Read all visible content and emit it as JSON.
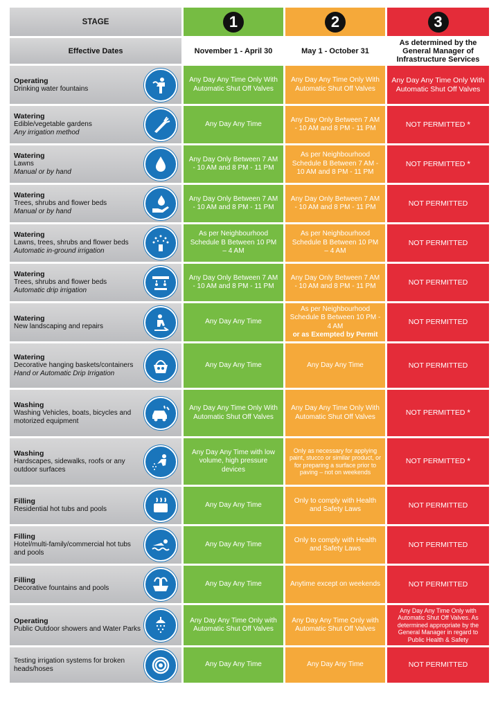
{
  "header": {
    "stage_label": "STAGE",
    "stage_numbers": [
      "1",
      "2",
      "3"
    ],
    "effective_dates_label": "Effective Dates",
    "dates": [
      "November 1 - April 30",
      "May 1 - October 31",
      "As determined by the General Manager of Infrastructure Services"
    ]
  },
  "colors": {
    "stage1": "#76bc43",
    "stage2": "#f5a93a",
    "stage3": "#e42c39",
    "icon": "#1a75bb",
    "label_bg": "#c8c9cb"
  },
  "rows": [
    {
      "category": "Operating",
      "desc": "Drinking water fountains",
      "mode": "",
      "icon": "drinking-fountain-icon",
      "s1": "Any Day Any Time Only With Automatic Shut Off Valves",
      "s2": "Any Day Any Time Only With Automatic Shut Off Valves",
      "s3": "Any Day Any Time Only With Automatic Shut Off Valves",
      "s3_star": ""
    },
    {
      "category": "Watering",
      "desc": "Edible/vegetable gardens",
      "mode": "Any irrigation method",
      "icon": "carrot-icon",
      "s1": "Any Day Any Time",
      "s2": "Any Day Only Between 7 AM - 10 AM and 8 PM - 11 PM",
      "s3": "NOT PERMITTED",
      "s3_star": "*"
    },
    {
      "category": "Watering",
      "desc": "Lawns",
      "mode": "Manual or by hand",
      "icon": "water-drop-icon",
      "s1": "Any Day Only Between 7 AM - 10 AM and 8 PM - 11 PM",
      "s2": "As per Neighbourhood Schedule B Between 7 AM - 10 AM and 8 PM - 11 PM",
      "s3": "NOT PERMITTED",
      "s3_star": "*"
    },
    {
      "category": "Watering",
      "desc": "Trees, shrubs and flower beds",
      "mode": "Manual or by hand",
      "icon": "hand-drop-icon",
      "s1": "Any Day Only Between 7 AM - 10 AM and 8 PM - 11 PM",
      "s2": "Any Day Only Between 7 AM - 10 AM and 8 PM - 11 PM",
      "s3": "NOT PERMITTED",
      "s3_star": ""
    },
    {
      "category": "Watering",
      "desc": "Lawns, trees, shrubs and flower beds",
      "mode": "Automatic in-ground irrigation",
      "icon": "sprinkler-icon",
      "s1": "As per Neighbourhood Schedule B Between 10 PM – 4 AM",
      "s2": "As per Neighbourhood Schedule B Between 10 PM – 4 AM",
      "s3": "NOT PERMITTED",
      "s3_star": ""
    },
    {
      "category": "Watering",
      "desc": "Trees, shrubs and flower beds",
      "mode": "Automatic drip irrigation",
      "icon": "drip-irrigation-icon",
      "s1": "Any Day Only Between 7 AM - 10 AM and 8 PM - 11 PM",
      "s2": "Any Day Only Between 7 AM - 10 AM and 8 PM - 11 PM",
      "s3": "NOT PERMITTED",
      "s3_star": ""
    },
    {
      "category": "Watering",
      "desc": "New landscaping and repairs",
      "mode": "",
      "icon": "gardener-icon",
      "s1": "Any Day Any Time",
      "s2": "As per Neighbourhood Schedule B Between 10 PM - 4 AM",
      "s2_bold": "or as Exempted by Permit",
      "s3": "NOT PERMITTED",
      "s3_star": ""
    },
    {
      "category": "Watering",
      "desc": "Decorative hanging baskets/containers",
      "mode": "Hand or Automatic Drip Irrigation",
      "icon": "flower-basket-icon",
      "s1": "Any Day Any Time",
      "s2": "Any Day Any Time",
      "s3": "NOT PERMITTED",
      "s3_star": ""
    },
    {
      "category": "Washing",
      "desc": "Washing Vehicles, boats, bicycles and motorized equipment",
      "mode": "",
      "icon": "car-wash-icon",
      "s1": "Any Day Any Time Only With Automatic Shut Off Valves",
      "s2": "Any Day Any Time Only With Automatic Shut Off Valves",
      "s3": "NOT PERMITTED",
      "s3_star": "*"
    },
    {
      "category": "Washing",
      "desc": "Hardscapes, sidewalks, roofs or any outdoor surfaces",
      "mode": "",
      "icon": "pressure-washer-icon",
      "s1": "Any Day Any Time with low volume, high pressure devices",
      "s2": "Only as necessary for applying paint, stucco or similar product, or for preparing a surface prior to paving – not on weekends",
      "s3": "NOT PERMITTED",
      "s3_star": "*"
    },
    {
      "category": "Filling",
      "desc": "Residential hot tubs and pools",
      "mode": "",
      "icon": "hot-tub-icon",
      "s1": "Any Day Any Time",
      "s2": "Only to comply with Health and Safety Laws",
      "s3": "NOT PERMITTED",
      "s3_star": ""
    },
    {
      "category": "Filling",
      "desc": "Hotel/multi-family/commercial hot tubs and pools",
      "mode": "",
      "icon": "swimmer-icon",
      "s1": "Any Day Any Time",
      "s2": "Only to comply with Health and Safety Laws",
      "s3": "NOT PERMITTED",
      "s3_star": ""
    },
    {
      "category": "Filling",
      "desc": "Decorative fountains and pools",
      "mode": "",
      "icon": "fountain-icon",
      "s1": "Any Day Any Time",
      "s2": "Anytime except on weekends",
      "s3": "NOT PERMITTED",
      "s3_star": ""
    },
    {
      "category": "Operating",
      "desc": "Public Outdoor showers and Water Parks",
      "mode": "",
      "icon": "shower-icon",
      "s1": "Any Day Any Time Only with Automatic Shut Off Valves",
      "s2": "Any Day Any Time Only with Automatic Shut Off Valves",
      "s3": "Any Day Any Time Only with Automatic Shut Off Valves. As determined appropriate by the General Manager in regard to Public Health & Safety",
      "s3_star": ""
    },
    {
      "category": "",
      "desc": "Testing irrigation systems for broken heads/hoses",
      "mode": "",
      "icon": "hose-icon",
      "s1": "Any Day Any Time",
      "s2": "Any Day Any Time",
      "s3": "NOT PERMITTED",
      "s3_star": ""
    }
  ]
}
